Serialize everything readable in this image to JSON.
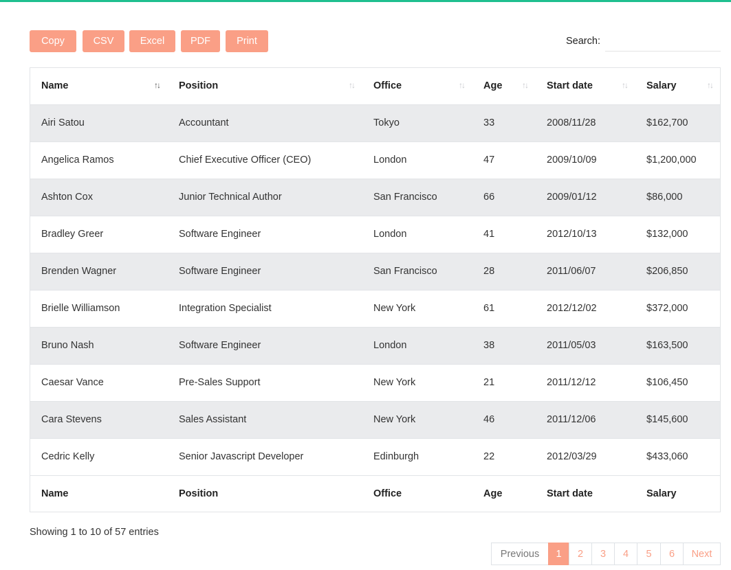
{
  "toolbar": {
    "buttons": [
      "Copy",
      "CSV",
      "Excel",
      "PDF",
      "Print"
    ],
    "search_label": "Search:"
  },
  "table": {
    "columns": [
      "Name",
      "Position",
      "Office",
      "Age",
      "Start date",
      "Salary"
    ],
    "rows": [
      [
        "Airi Satou",
        "Accountant",
        "Tokyo",
        "33",
        "2008/11/28",
        "$162,700"
      ],
      [
        "Angelica Ramos",
        "Chief Executive Officer (CEO)",
        "London",
        "47",
        "2009/10/09",
        "$1,200,000"
      ],
      [
        "Ashton Cox",
        "Junior Technical Author",
        "San Francisco",
        "66",
        "2009/01/12",
        "$86,000"
      ],
      [
        "Bradley Greer",
        "Software Engineer",
        "London",
        "41",
        "2012/10/13",
        "$132,000"
      ],
      [
        "Brenden Wagner",
        "Software Engineer",
        "San Francisco",
        "28",
        "2011/06/07",
        "$206,850"
      ],
      [
        "Brielle Williamson",
        "Integration Specialist",
        "New York",
        "61",
        "2012/12/02",
        "$372,000"
      ],
      [
        "Bruno Nash",
        "Software Engineer",
        "London",
        "38",
        "2011/05/03",
        "$163,500"
      ],
      [
        "Caesar Vance",
        "Pre-Sales Support",
        "New York",
        "21",
        "2011/12/12",
        "$106,450"
      ],
      [
        "Cara Stevens",
        "Sales Assistant",
        "New York",
        "46",
        "2011/12/06",
        "$145,600"
      ],
      [
        "Cedric Kelly",
        "Senior Javascript Developer",
        "Edinburgh",
        "22",
        "2012/03/29",
        "$433,060"
      ]
    ],
    "footer": [
      "Name",
      "Position",
      "Office",
      "Age",
      "Start date",
      "Salary"
    ]
  },
  "info": "Showing 1 to 10 of 57 entries",
  "pagination": {
    "previous": "Previous",
    "pages": [
      "1",
      "2",
      "3",
      "4",
      "5",
      "6"
    ],
    "next": "Next"
  }
}
